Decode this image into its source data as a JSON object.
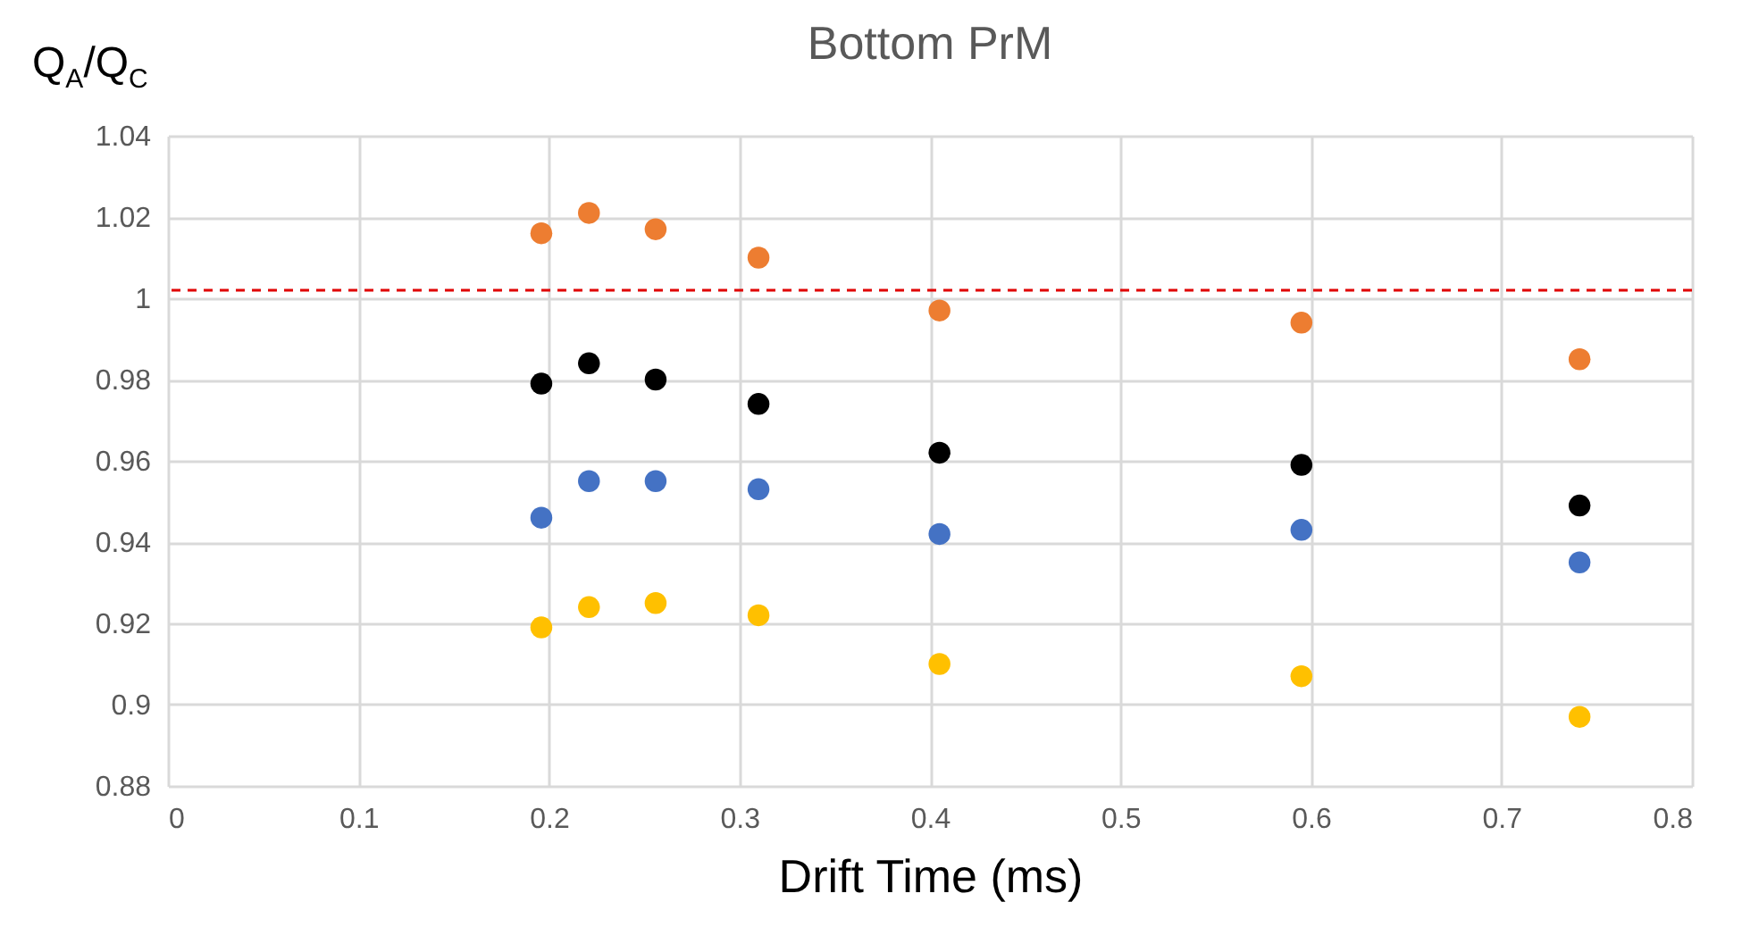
{
  "chart_data": {
    "type": "scatter",
    "title": "Bottom PrM",
    "xlabel": "Drift Time (ms)",
    "ylabel": "Q$_{A}$/Q$_{C}$",
    "x": [
      0.196,
      0.221,
      0.256,
      0.31,
      0.405,
      0.595,
      0.741
    ],
    "series": [
      {
        "color": "#ed7d31",
        "values": [
          1.016,
          1.021,
          1.017,
          1.01,
          0.997,
          0.994,
          0.985
        ]
      },
      {
        "color": "#000000",
        "values": [
          0.979,
          0.984,
          0.98,
          0.974,
          0.962,
          0.959,
          0.949
        ]
      },
      {
        "color": "#4472c4",
        "values": [
          0.946,
          0.955,
          0.955,
          0.953,
          0.942,
          0.943,
          0.935
        ]
      },
      {
        "color": "#ffc000",
        "values": [
          0.919,
          0.924,
          0.925,
          0.922,
          0.91,
          0.907,
          0.897
        ]
      }
    ],
    "xlim": [
      0,
      0.8
    ],
    "xticks": [
      0,
      0.1,
      0.2,
      0.3,
      0.4,
      0.5,
      0.6,
      0.7,
      0.8
    ],
    "ylim": [
      0.88,
      1.04
    ],
    "yticks": [
      0.88,
      0.9,
      0.92,
      0.94,
      0.96,
      0.98,
      1,
      1.02,
      1.04
    ],
    "ref_lines": [
      {
        "axis": "y",
        "value": 1.002,
        "color": "#e00000",
        "line_style": "dashed"
      }
    ],
    "grid": true,
    "marker": "circle"
  }
}
